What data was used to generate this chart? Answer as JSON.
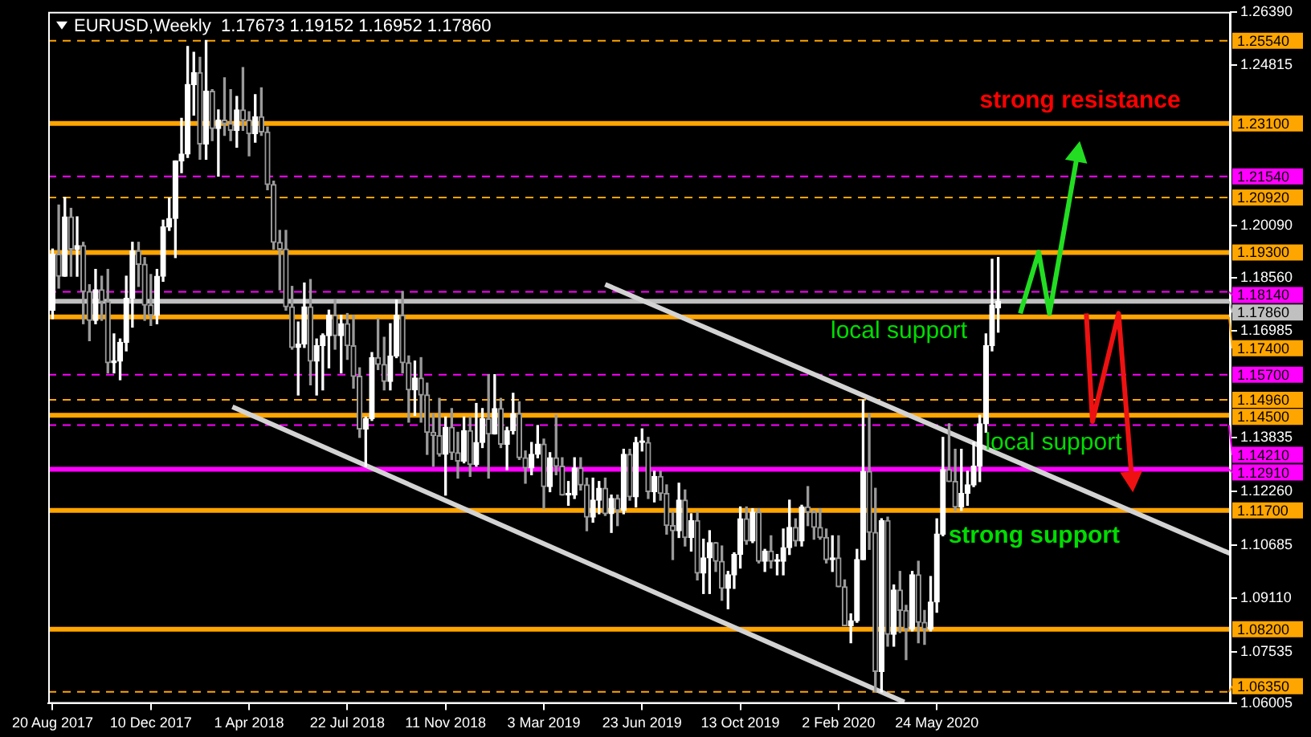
{
  "chart_data": {
    "type": "candlestick",
    "title": "EURUSD,Weekly  1.17673 1.19152 1.16952 1.17860",
    "x": [
      "2017-08-20",
      "2017-08-27",
      "2017-09-03",
      "2017-09-10",
      "2017-09-17",
      "2017-09-24",
      "2017-10-01",
      "2017-10-08",
      "2017-10-15",
      "2017-10-22",
      "2017-10-29",
      "2017-11-05",
      "2017-11-12",
      "2017-11-19",
      "2017-11-26",
      "2017-12-03",
      "2017-12-10",
      "2017-12-17",
      "2017-12-24",
      "2017-12-31",
      "2018-01-07",
      "2018-01-14",
      "2018-01-21",
      "2018-01-28",
      "2018-02-04",
      "2018-02-11",
      "2018-02-18",
      "2018-02-25",
      "2018-03-04",
      "2018-03-11",
      "2018-03-18",
      "2018-03-25",
      "2018-04-01",
      "2018-04-08",
      "2018-04-15",
      "2018-04-22",
      "2018-04-29",
      "2018-05-06",
      "2018-05-13",
      "2018-05-20",
      "2018-05-27",
      "2018-06-03",
      "2018-06-10",
      "2018-06-17",
      "2018-06-24",
      "2018-07-01",
      "2018-07-08",
      "2018-07-15",
      "2018-07-22",
      "2018-07-29",
      "2018-08-05",
      "2018-08-12",
      "2018-08-19",
      "2018-08-26",
      "2018-09-02",
      "2018-09-09",
      "2018-09-16",
      "2018-09-23",
      "2018-09-30",
      "2018-10-07",
      "2018-10-14",
      "2018-10-21",
      "2018-10-28",
      "2018-11-04",
      "2018-11-11",
      "2018-11-18",
      "2018-11-25",
      "2018-12-02",
      "2018-12-09",
      "2018-12-16",
      "2018-12-23",
      "2018-12-30",
      "2019-01-06",
      "2019-01-13",
      "2019-01-20",
      "2019-01-27",
      "2019-02-03",
      "2019-02-10",
      "2019-02-17",
      "2019-02-24",
      "2019-03-03",
      "2019-03-10",
      "2019-03-17",
      "2019-03-24",
      "2019-03-31",
      "2019-04-07",
      "2019-04-14",
      "2019-04-21",
      "2019-04-28",
      "2019-05-05",
      "2019-05-12",
      "2019-05-19",
      "2019-05-26",
      "2019-06-02",
      "2019-06-09",
      "2019-06-16",
      "2019-06-23",
      "2019-06-30",
      "2019-07-07",
      "2019-07-14",
      "2019-07-21",
      "2019-07-28",
      "2019-08-04",
      "2019-08-11",
      "2019-08-18",
      "2019-08-25",
      "2019-09-01",
      "2019-09-08",
      "2019-09-15",
      "2019-09-22",
      "2019-09-29",
      "2019-10-06",
      "2019-10-13",
      "2019-10-20",
      "2019-10-27",
      "2019-11-03",
      "2019-11-10",
      "2019-11-17",
      "2019-11-24",
      "2019-12-01",
      "2019-12-08",
      "2019-12-15",
      "2019-12-22",
      "2019-12-29",
      "2020-01-05",
      "2020-01-12",
      "2020-01-19",
      "2020-01-26",
      "2020-02-02",
      "2020-02-09",
      "2020-02-16",
      "2020-02-23",
      "2020-03-01",
      "2020-03-08",
      "2020-03-15",
      "2020-03-22",
      "2020-03-29",
      "2020-04-05",
      "2020-04-12",
      "2020-04-19",
      "2020-04-26",
      "2020-05-03",
      "2020-05-10",
      "2020-05-17",
      "2020-05-24",
      "2020-05-31",
      "2020-06-07",
      "2020-06-14",
      "2020-06-21",
      "2020-06-28",
      "2020-07-05",
      "2020-07-12",
      "2020-07-19",
      "2020-07-26",
      "2020-08-02"
    ],
    "ohlc": [
      [
        1.176,
        1.194,
        1.1735,
        1.1925
      ],
      [
        1.1925,
        1.207,
        1.1825,
        1.186
      ],
      [
        1.186,
        1.2092,
        1.186,
        1.2035
      ],
      [
        1.2035,
        1.206,
        1.186,
        1.194
      ],
      [
        1.194,
        1.2035,
        1.186,
        1.195
      ],
      [
        1.195,
        1.196,
        1.172,
        1.1815
      ],
      [
        1.1815,
        1.1835,
        1.167,
        1.173
      ],
      [
        1.173,
        1.188,
        1.172,
        1.182
      ],
      [
        1.182,
        1.186,
        1.173,
        1.1785
      ],
      [
        1.1785,
        1.188,
        1.1575,
        1.1605
      ],
      [
        1.1605,
        1.169,
        1.1575,
        1.161
      ],
      [
        1.161,
        1.1675,
        1.1555,
        1.1665
      ],
      [
        1.1665,
        1.186,
        1.164,
        1.1795
      ],
      [
        1.1795,
        1.196,
        1.171,
        1.1935
      ],
      [
        1.1935,
        1.196,
        1.183,
        1.1895
      ],
      [
        1.1895,
        1.1915,
        1.173,
        1.1775
      ],
      [
        1.1775,
        1.1865,
        1.1715,
        1.1745
      ],
      [
        1.1745,
        1.188,
        1.172,
        1.186
      ],
      [
        1.186,
        1.2025,
        1.1845,
        1.2005
      ],
      [
        1.2005,
        1.209,
        1.1995,
        1.203
      ],
      [
        1.203,
        1.22,
        1.1915,
        1.22
      ],
      [
        1.22,
        1.2325,
        1.2165,
        1.222
      ],
      [
        1.222,
        1.2537,
        1.221,
        1.2425
      ],
      [
        1.2425,
        1.252,
        1.2335,
        1.246
      ],
      [
        1.246,
        1.2505,
        1.2205,
        1.225
      ],
      [
        1.225,
        1.2555,
        1.2205,
        1.2405
      ],
      [
        1.2405,
        1.241,
        1.226,
        1.2295
      ],
      [
        1.2295,
        1.235,
        1.2155,
        1.232
      ],
      [
        1.232,
        1.2445,
        1.2275,
        1.231
      ],
      [
        1.231,
        1.241,
        1.226,
        1.229
      ],
      [
        1.229,
        1.239,
        1.224,
        1.235
      ],
      [
        1.235,
        1.2475,
        1.229,
        1.232
      ],
      [
        1.232,
        1.2345,
        1.2215,
        1.228
      ],
      [
        1.228,
        1.2395,
        1.2255,
        1.233
      ],
      [
        1.233,
        1.2415,
        1.2275,
        1.2285
      ],
      [
        1.2285,
        1.23,
        1.2115,
        1.213
      ],
      [
        1.213,
        1.214,
        1.194,
        1.196
      ],
      [
        1.196,
        1.1995,
        1.182,
        1.194
      ],
      [
        1.194,
        1.1995,
        1.176,
        1.177
      ],
      [
        1.177,
        1.183,
        1.1645,
        1.165
      ],
      [
        1.165,
        1.1725,
        1.151,
        1.166
      ],
      [
        1.166,
        1.184,
        1.165,
        1.177
      ],
      [
        1.177,
        1.185,
        1.154,
        1.161
      ],
      [
        1.161,
        1.1675,
        1.151,
        1.1655
      ],
      [
        1.1655,
        1.169,
        1.1525,
        1.1685
      ],
      [
        1.1685,
        1.176,
        1.159,
        1.1745
      ],
      [
        1.1745,
        1.179,
        1.1645,
        1.1685
      ],
      [
        1.1685,
        1.1745,
        1.1575,
        1.172
      ],
      [
        1.172,
        1.175,
        1.1615,
        1.1655
      ],
      [
        1.1655,
        1.1745,
        1.153,
        1.1565
      ],
      [
        1.1565,
        1.159,
        1.1385,
        1.141
      ],
      [
        1.141,
        1.1445,
        1.13,
        1.144
      ],
      [
        1.144,
        1.1635,
        1.1435,
        1.162
      ],
      [
        1.162,
        1.1735,
        1.1585,
        1.16
      ],
      [
        1.16,
        1.168,
        1.1525,
        1.155
      ],
      [
        1.155,
        1.172,
        1.1525,
        1.1625
      ],
      [
        1.1625,
        1.179,
        1.162,
        1.1745
      ],
      [
        1.1745,
        1.1815,
        1.1575,
        1.1605
      ],
      [
        1.1605,
        1.1625,
        1.143,
        1.1525
      ],
      [
        1.1525,
        1.161,
        1.145,
        1.156
      ],
      [
        1.156,
        1.162,
        1.143,
        1.151
      ],
      [
        1.151,
        1.1545,
        1.1335,
        1.14
      ],
      [
        1.14,
        1.1455,
        1.13,
        1.139
      ],
      [
        1.139,
        1.15,
        1.133,
        1.1335
      ],
      [
        1.1335,
        1.1445,
        1.1215,
        1.1415
      ],
      [
        1.1415,
        1.147,
        1.132,
        1.134
      ],
      [
        1.134,
        1.14,
        1.1265,
        1.1315
      ],
      [
        1.1315,
        1.1445,
        1.131,
        1.1405
      ],
      [
        1.1405,
        1.1445,
        1.127,
        1.1305
      ],
      [
        1.1305,
        1.1485,
        1.13,
        1.137
      ],
      [
        1.137,
        1.147,
        1.1355,
        1.144
      ],
      [
        1.144,
        1.157,
        1.1265,
        1.1395
      ],
      [
        1.1395,
        1.157,
        1.1395,
        1.147
      ],
      [
        1.147,
        1.15,
        1.1355,
        1.1365
      ],
      [
        1.1365,
        1.1415,
        1.129,
        1.1405
      ],
      [
        1.1405,
        1.1515,
        1.1395,
        1.1455
      ],
      [
        1.1455,
        1.149,
        1.132,
        1.1325
      ],
      [
        1.1325,
        1.1345,
        1.125,
        1.1295
      ],
      [
        1.1295,
        1.137,
        1.1275,
        1.1335
      ],
      [
        1.1335,
        1.142,
        1.1325,
        1.1365
      ],
      [
        1.1365,
        1.138,
        1.1175,
        1.124
      ],
      [
        1.124,
        1.134,
        1.1225,
        1.1325
      ],
      [
        1.1325,
        1.145,
        1.1275,
        1.13
      ],
      [
        1.13,
        1.1325,
        1.1215,
        1.1215
      ],
      [
        1.1215,
        1.1255,
        1.1185,
        1.1215
      ],
      [
        1.1215,
        1.1325,
        1.1205,
        1.1295
      ],
      [
        1.1295,
        1.1325,
        1.123,
        1.1245
      ],
      [
        1.1245,
        1.1265,
        1.111,
        1.115
      ],
      [
        1.115,
        1.1265,
        1.1135,
        1.12
      ],
      [
        1.12,
        1.1255,
        1.116,
        1.1235
      ],
      [
        1.1235,
        1.1265,
        1.1155,
        1.116
      ],
      [
        1.116,
        1.1215,
        1.1105,
        1.1205
      ],
      [
        1.1205,
        1.1215,
        1.1125,
        1.117
      ],
      [
        1.117,
        1.135,
        1.116,
        1.1335
      ],
      [
        1.1335,
        1.135,
        1.12,
        1.121
      ],
      [
        1.121,
        1.1385,
        1.118,
        1.137
      ],
      [
        1.137,
        1.141,
        1.1345,
        1.137
      ],
      [
        1.137,
        1.1385,
        1.1205,
        1.1225
      ],
      [
        1.1225,
        1.1285,
        1.1195,
        1.127
      ],
      [
        1.127,
        1.1285,
        1.12,
        1.122
      ],
      [
        1.122,
        1.1245,
        1.11,
        1.1125
      ],
      [
        1.1125,
        1.1165,
        1.1025,
        1.111
      ],
      [
        1.111,
        1.125,
        1.109,
        1.12
      ],
      [
        1.12,
        1.123,
        1.1065,
        1.109
      ],
      [
        1.109,
        1.116,
        1.105,
        1.114
      ],
      [
        1.114,
        1.1165,
        1.0965,
        1.0985
      ],
      [
        1.0985,
        1.1085,
        1.0925,
        1.103
      ],
      [
        1.103,
        1.111,
        1.0925,
        1.1075
      ],
      [
        1.1075,
        1.1075,
        1.099,
        1.102
      ],
      [
        1.102,
        1.1065,
        1.0905,
        1.094
      ],
      [
        1.094,
        1.099,
        1.088,
        1.098
      ],
      [
        1.098,
        1.1045,
        1.094,
        1.104
      ],
      [
        1.104,
        1.118,
        1.1,
        1.1145
      ],
      [
        1.1145,
        1.118,
        1.107,
        1.108
      ],
      [
        1.108,
        1.1175,
        1.1075,
        1.1165
      ],
      [
        1.1165,
        1.1175,
        1.1015,
        1.102
      ],
      [
        1.102,
        1.1055,
        1.099,
        1.105
      ],
      [
        1.105,
        1.1095,
        1.1,
        1.102
      ],
      [
        1.102,
        1.104,
        1.098,
        1.102
      ],
      [
        1.102,
        1.1115,
        1.098,
        1.106
      ],
      [
        1.106,
        1.12,
        1.104,
        1.112
      ],
      [
        1.112,
        1.1145,
        1.1065,
        1.108
      ],
      [
        1.108,
        1.1185,
        1.1065,
        1.118
      ],
      [
        1.118,
        1.124,
        1.1125,
        1.1165
      ],
      [
        1.1165,
        1.117,
        1.1085,
        1.112
      ],
      [
        1.112,
        1.1175,
        1.1085,
        1.109
      ],
      [
        1.109,
        1.1115,
        1.1015,
        1.1025
      ],
      [
        1.1025,
        1.1095,
        1.099,
        1.103
      ],
      [
        1.103,
        1.1095,
        1.0945,
        1.0945
      ],
      [
        1.0945,
        1.0965,
        1.083,
        1.083
      ],
      [
        1.083,
        1.0865,
        1.078,
        1.0845
      ],
      [
        1.0845,
        1.1055,
        1.084,
        1.1025
      ],
      [
        1.1025,
        1.1495,
        1.1025,
        1.1285
      ],
      [
        1.1285,
        1.1455,
        1.1055,
        1.1105
      ],
      [
        1.1105,
        1.1235,
        1.0636,
        1.0695
      ],
      [
        1.0695,
        1.1145,
        1.0635,
        1.114
      ],
      [
        1.114,
        1.115,
        1.077,
        1.0805
      ],
      [
        1.0805,
        1.095,
        1.077,
        1.0935
      ],
      [
        1.0935,
        1.099,
        1.081,
        1.0875
      ],
      [
        1.0875,
        1.089,
        1.073,
        1.082
      ],
      [
        1.082,
        1.099,
        1.0815,
        1.098
      ],
      [
        1.098,
        1.102,
        1.078,
        1.084
      ],
      [
        1.084,
        1.0875,
        1.0775,
        1.082
      ],
      [
        1.082,
        1.0975,
        1.0815,
        1.09
      ],
      [
        1.09,
        1.1145,
        1.087,
        1.11
      ],
      [
        1.11,
        1.1385,
        1.1095,
        1.129
      ],
      [
        1.129,
        1.1425,
        1.1255,
        1.1255
      ],
      [
        1.1255,
        1.135,
        1.117,
        1.118
      ],
      [
        1.118,
        1.135,
        1.117,
        1.122
      ],
      [
        1.122,
        1.1285,
        1.1185,
        1.1245
      ],
      [
        1.1245,
        1.137,
        1.124,
        1.13
      ],
      [
        1.13,
        1.145,
        1.1255,
        1.1425
      ],
      [
        1.1425,
        1.169,
        1.14,
        1.1655
      ],
      [
        1.1655,
        1.191,
        1.164,
        1.1775
      ],
      [
        1.17673,
        1.19152,
        1.16952,
        1.1786
      ]
    ],
    "series": [
      {
        "type": "line",
        "color": "#d3d3d3",
        "x": [
          "2019-05-12",
          "2021-04-24"
        ],
        "values": [
          1.1836,
          1.1042
        ]
      },
      {
        "type": "line",
        "color": "#d3d3d3",
        "x": [
          "2018-03-13",
          "2020-04-17"
        ],
        "values": [
          1.1475,
          1.0605
        ]
      }
    ],
    "xlim": [
      "2017-08-15",
      "2021-04-24"
    ],
    "xticks": [
      {
        "value": "2017-08-20",
        "label": "20 Aug 2017"
      },
      {
        "value": "2017-12-10",
        "label": "10 Dec 2017"
      },
      {
        "value": "2018-04-01",
        "label": "1 Apr 2018"
      },
      {
        "value": "2018-07-22",
        "label": "22 Jul 2018"
      },
      {
        "value": "2018-11-11",
        "label": "11 Nov 2018"
      },
      {
        "value": "2019-03-03",
        "label": "3 Mar 2019"
      },
      {
        "value": "2019-06-23",
        "label": "23 Jun 2019"
      },
      {
        "value": "2019-10-13",
        "label": "13 Oct 2019"
      },
      {
        "value": "2020-02-02",
        "label": "2 Feb 2020"
      },
      {
        "value": "2020-05-24",
        "label": "24 May 2020"
      }
    ],
    "ylim": [
      1.06005,
      1.2639
    ],
    "yticks": [
      {
        "value": 1.2639,
        "label": "1.26390"
      },
      {
        "value": 1.24815,
        "label": "1.24815"
      },
      {
        "value": 1.2009,
        "label": "1.20090"
      },
      {
        "value": 1.1856,
        "label": "1.18560"
      },
      {
        "value": 1.16985,
        "label": "1.16985"
      },
      {
        "value": 1.13835,
        "label": "1.13835"
      },
      {
        "value": 1.1226,
        "label": "1.12260"
      },
      {
        "value": 1.10685,
        "label": "1.10685"
      },
      {
        "value": 1.0911,
        "label": "1.09110"
      },
      {
        "value": 1.07535,
        "label": "1.07535"
      },
      {
        "value": 1.06005,
        "label": "1.06005"
      }
    ],
    "ref_lines": [
      {
        "axis": "y",
        "value": 1.2554,
        "label": "1.25540",
        "color": "#ffa500",
        "line_style": "dashed"
      },
      {
        "axis": "y",
        "value": 1.231,
        "label": "1.23100",
        "color": "#ffa500",
        "line_style": "solid"
      },
      {
        "axis": "y",
        "value": 1.2154,
        "label": "1.21540",
        "color": "#ff00ff",
        "line_style": "dashed"
      },
      {
        "axis": "y",
        "value": 1.2092,
        "label": "1.20920",
        "color": "#ffa500",
        "line_style": "dashed"
      },
      {
        "axis": "y",
        "value": 1.193,
        "label": "1.19300",
        "color": "#ffa500",
        "line_style": "solid"
      },
      {
        "axis": "y",
        "value": 1.1814,
        "label": "1.18140",
        "color": "#ff00ff",
        "line_style": "dashed"
      },
      {
        "axis": "y",
        "value": 1.1786,
        "label": "1.17860",
        "color": "#c0c0c0",
        "line_style": "solid"
      },
      {
        "axis": "y",
        "value": 1.174,
        "label": "1.17400",
        "color": "#ffa500",
        "line_style": "solid"
      },
      {
        "axis": "y",
        "value": 1.157,
        "label": "1.15700",
        "color": "#ff00ff",
        "line_style": "dashed"
      },
      {
        "axis": "y",
        "value": 1.1496,
        "label": "1.14960",
        "color": "#ffa500",
        "line_style": "dashed"
      },
      {
        "axis": "y",
        "value": 1.145,
        "label": "1.14500",
        "color": "#ffa500",
        "line_style": "solid"
      },
      {
        "axis": "y",
        "value": 1.1421,
        "label": "1.14210",
        "color": "#ff00ff",
        "line_style": "dashed"
      },
      {
        "axis": "y",
        "value": 1.1291,
        "label": "1.12910",
        "color": "#ff00ff",
        "line_style": "solid"
      },
      {
        "axis": "y",
        "value": 1.117,
        "label": "1.11700",
        "color": "#ffa500",
        "line_style": "solid"
      },
      {
        "axis": "y",
        "value": 1.082,
        "label": "1.08200",
        "color": "#ffa500",
        "line_style": "solid"
      },
      {
        "axis": "y",
        "value": 1.0635,
        "label": "1.06350",
        "color": "#ffa500",
        "line_style": "dashed"
      }
    ],
    "annotations": [
      "strong resistance",
      "local support",
      {
        "text": "local support",
        "x": "2020-11-17",
        "y": 1.145
      },
      "strong support"
    ]
  }
}
